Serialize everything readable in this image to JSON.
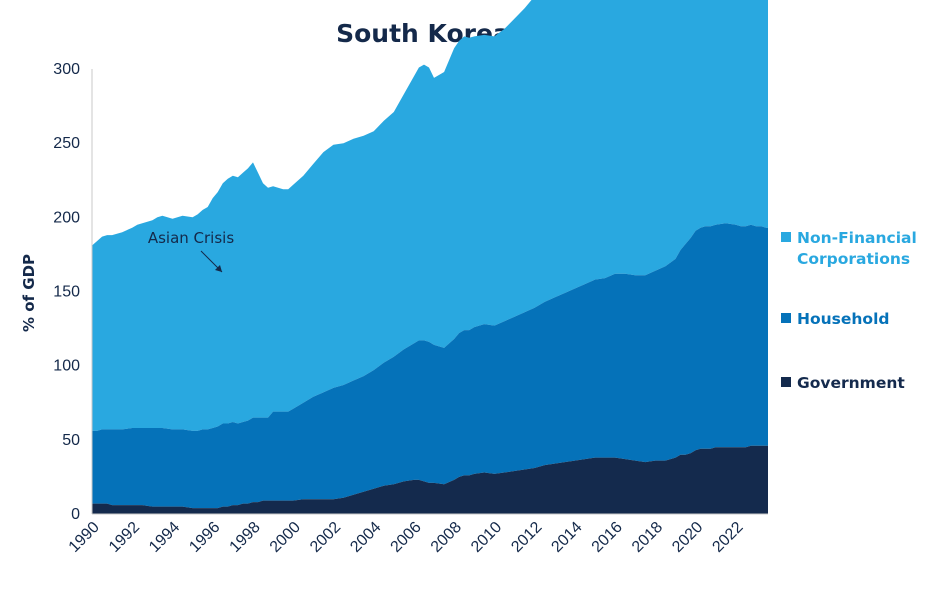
{
  "chart_data": {
    "type": "area",
    "stacked": true,
    "title": "South Korean Debt",
    "ylabel": "% of GDP",
    "ylim": [
      0,
      300
    ],
    "yticks": [
      0,
      50,
      100,
      150,
      200,
      250,
      300
    ],
    "xlim": [
      1990,
      2023.6
    ],
    "xticks": [
      "1990",
      "1992",
      "1994",
      "1996",
      "1998",
      "2000",
      "2002",
      "2004",
      "2006",
      "2008",
      "2010",
      "2012",
      "2014",
      "2016",
      "2018",
      "2020",
      "2022"
    ],
    "grid": false,
    "legend_position": "right",
    "annotation": {
      "text": "Asian Crisis",
      "x": 1996.3,
      "y": 160
    },
    "x": [
      1990,
      1990.25,
      1990.5,
      1990.75,
      1991,
      1991.5,
      1992,
      1992.25,
      1992.5,
      1993,
      1993.25,
      1993.5,
      1994,
      1994.5,
      1995,
      1995.25,
      1995.5,
      1995.75,
      1996,
      1996.25,
      1996.5,
      1996.75,
      1997,
      1997.25,
      1997.5,
      1997.75,
      1998,
      1998.25,
      1998.5,
      1998.75,
      1999,
      1999.25,
      1999.5,
      1999.75,
      2000,
      2000.5,
      2001,
      2001.5,
      2002,
      2002.5,
      2003,
      2003.5,
      2004,
      2004.5,
      2005,
      2005.5,
      2006,
      2006.25,
      2006.5,
      2006.75,
      2007,
      2007.5,
      2008,
      2008.25,
      2008.5,
      2008.75,
      2009,
      2009.5,
      2010,
      2010.5,
      2011,
      2011.5,
      2012,
      2012.5,
      2013,
      2013.5,
      2014,
      2014.5,
      2015,
      2015.5,
      2016,
      2016.5,
      2017,
      2017.5,
      2018,
      2018.5,
      2019,
      2019.25,
      2019.5,
      2019.75,
      2020,
      2020.25,
      2020.5,
      2020.75,
      2021,
      2021.5,
      2022,
      2022.25,
      2022.5,
      2022.75,
      2023,
      2023.25,
      2023.5,
      2023.6
    ],
    "series": [
      {
        "name": "Government",
        "color": "#142a4d",
        "values": [
          7,
          7,
          7,
          7,
          6,
          6,
          6,
          6,
          6,
          5,
          5,
          5,
          5,
          5,
          4,
          4,
          4,
          4,
          4,
          4,
          5,
          5,
          6,
          6,
          7,
          7,
          8,
          8,
          9,
          9,
          9,
          9,
          9,
          9,
          9,
          10,
          10,
          10,
          10,
          11,
          13,
          15,
          17,
          19,
          20,
          22,
          23,
          23,
          22,
          21,
          21,
          20,
          23,
          25,
          26,
          26,
          27,
          28,
          27,
          28,
          29,
          30,
          31,
          33,
          34,
          35,
          36,
          37,
          38,
          38,
          38,
          37,
          36,
          35,
          36,
          36,
          38,
          40,
          40,
          41,
          43,
          44,
          44,
          44,
          45,
          45,
          45,
          45,
          45,
          46,
          46,
          46,
          46,
          46
        ]
      },
      {
        "name": "Household",
        "color": "#0572b9",
        "values": [
          49,
          49,
          50,
          50,
          51,
          51,
          52,
          52,
          52,
          53,
          53,
          53,
          52,
          52,
          52,
          52,
          53,
          53,
          54,
          55,
          56,
          56,
          56,
          55,
          55,
          56,
          57,
          57,
          56,
          56,
          60,
          60,
          60,
          60,
          62,
          65,
          69,
          72,
          75,
          76,
          77,
          78,
          80,
          83,
          86,
          89,
          92,
          94,
          95,
          95,
          93,
          92,
          95,
          97,
          98,
          98,
          99,
          100,
          100,
          102,
          104,
          106,
          108,
          110,
          112,
          114,
          116,
          118,
          120,
          121,
          124,
          125,
          125,
          126,
          128,
          131,
          134,
          138,
          142,
          145,
          148,
          149,
          150,
          150,
          150,
          151,
          150,
          149,
          149,
          149,
          148,
          148,
          147,
          147
        ]
      },
      {
        "name": "Non-Financial Corporations",
        "color": "#29a8e0",
        "values": [
          125,
          128,
          130,
          131,
          131,
          133,
          135,
          137,
          138,
          140,
          142,
          143,
          142,
          144,
          144,
          146,
          148,
          150,
          155,
          158,
          162,
          165,
          166,
          166,
          168,
          170,
          172,
          165,
          158,
          155,
          152,
          151,
          150,
          150,
          151,
          153,
          157,
          162,
          164,
          163,
          163,
          162,
          161,
          163,
          165,
          172,
          180,
          184,
          186,
          185,
          180,
          186,
          196,
          197,
          198,
          197,
          196,
          195,
          195,
          197,
          201,
          205,
          210,
          212,
          210,
          213,
          215,
          218,
          219,
          220,
          221,
          219,
          220,
          218,
          220,
          224,
          230,
          235,
          240,
          250,
          256,
          258,
          261,
          263,
          265,
          268,
          269,
          270,
          271,
          272,
          272,
          271,
          270,
          270
        ]
      }
    ]
  },
  "legend": [
    {
      "label": "Non-Financial",
      "label2": "Corporations",
      "color": "#29a8e0"
    },
    {
      "label": "Household",
      "color": "#0572b9"
    },
    {
      "label": "Government",
      "color": "#142a4d"
    }
  ]
}
